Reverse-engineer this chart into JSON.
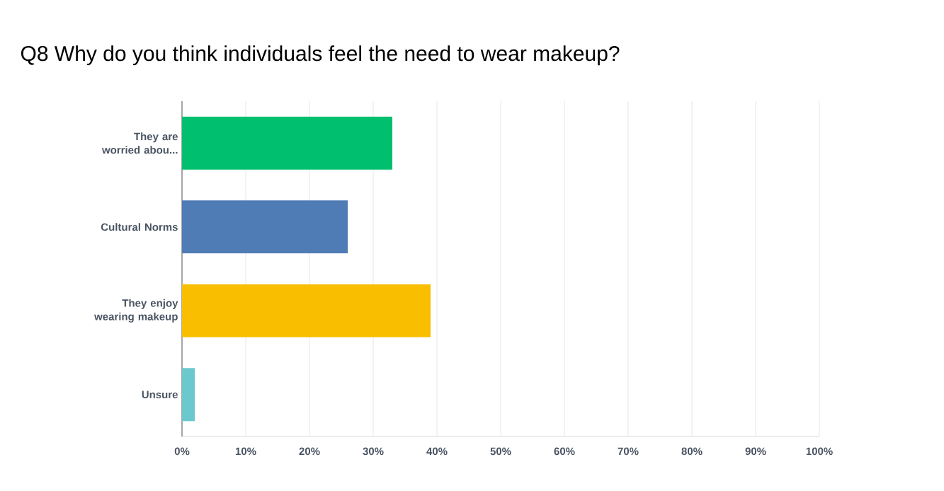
{
  "chart_data": {
    "type": "bar",
    "orientation": "horizontal",
    "title": "Q8 Why do you think individuals feel the need to wear makeup?",
    "categories": [
      "They are worried abou...",
      "Cultural Norms",
      "They enjoy wearing makeup",
      "Unsure"
    ],
    "values": [
      33,
      26,
      39,
      2
    ],
    "colors": [
      "#00bf6f",
      "#507cb6",
      "#f9be00",
      "#6bc8cd"
    ],
    "xlim": [
      0,
      100
    ],
    "xticks": [
      {
        "value": 0,
        "label": "0%"
      },
      {
        "value": 10,
        "label": "10%"
      },
      {
        "value": 20,
        "label": "20%"
      },
      {
        "value": 30,
        "label": "30%"
      },
      {
        "value": 40,
        "label": "40%"
      },
      {
        "value": 50,
        "label": "50%"
      },
      {
        "value": 60,
        "label": "60%"
      },
      {
        "value": 70,
        "label": "70%"
      },
      {
        "value": 80,
        "label": "80%"
      },
      {
        "value": 90,
        "label": "90%"
      },
      {
        "value": 100,
        "label": "100%"
      }
    ],
    "grid": "x"
  }
}
